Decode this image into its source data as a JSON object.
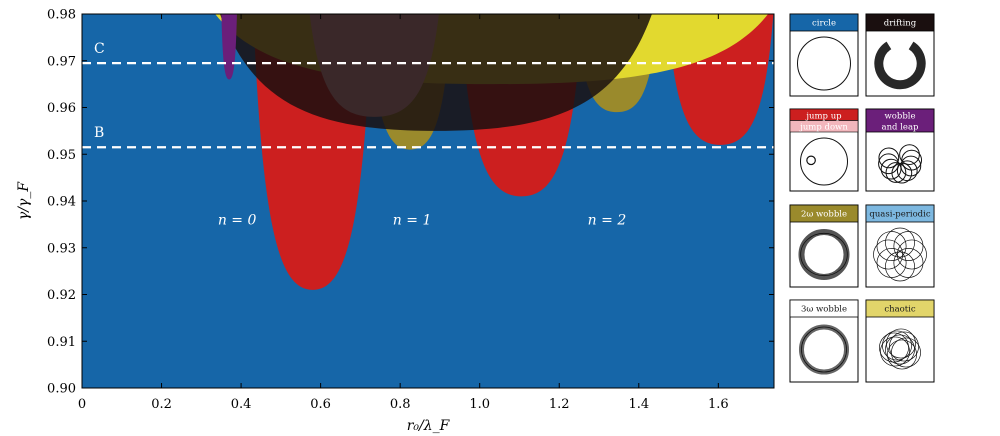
{
  "chart_data": {
    "type": "heatmap",
    "xlabel": "r₀/λ_F",
    "ylabel": "γ/γ_F",
    "xlim": [
      0,
      1.74
    ],
    "ylim": [
      0.9,
      0.98
    ],
    "x_ticks": [
      0,
      0.2,
      0.4,
      0.6,
      0.8,
      1.0,
      1.2,
      1.4,
      1.6
    ],
    "x_tick_labels": [
      "0",
      "0.2",
      "0.4",
      "0.6",
      "0.8",
      "1.0",
      "1.2",
      "1.4",
      "1.6"
    ],
    "y_ticks": [
      0.9,
      0.91,
      0.92,
      0.93,
      0.94,
      0.95,
      0.96,
      0.97,
      0.98
    ],
    "y_tick_labels": [
      "0.90",
      "0.91",
      "0.92",
      "0.93",
      "0.94",
      "0.95",
      "0.96",
      "0.97",
      "0.98"
    ],
    "background_color": "#1666a8",
    "reference_lines": [
      {
        "label": "C",
        "y": 0.9695
      },
      {
        "label": "B",
        "y": 0.9515
      }
    ],
    "annotations": [
      {
        "text": "n = 0",
        "x": 0.39,
        "y": 0.935
      },
      {
        "text": "n = 1",
        "x": 0.83,
        "y": 0.935
      },
      {
        "text": "n = 2",
        "x": 1.32,
        "y": 0.935
      }
    ],
    "regions": [
      {
        "state": "jump up",
        "color": "#cc1f1f",
        "x_range": [
          0.43,
          0.73
        ],
        "min_y": 0.921
      },
      {
        "state": "jump up",
        "color": "#cc1f1f",
        "x_range": [
          0.95,
          1.26
        ],
        "min_y": 0.941
      },
      {
        "state": "jump up",
        "color": "#cc1f1f",
        "x_range": [
          1.47,
          1.74
        ],
        "min_y": 0.952
      },
      {
        "state": "2ω wobble",
        "color": "#9a8a2c",
        "x_range": [
          0.72,
          0.93
        ],
        "min_y": 0.951
      },
      {
        "state": "2ω wobble",
        "color": "#9a8a2c",
        "x_range": [
          1.24,
          1.45
        ],
        "min_y": 0.959
      },
      {
        "state": "chaotic",
        "color": "#e2d92f",
        "x_range": [
          0.32,
          1.74
        ],
        "min_y": 0.965
      },
      {
        "state": "jump down",
        "color": "#f2b6bc",
        "x_range": [
          0.57,
          0.9
        ],
        "min_y": 0.958
      },
      {
        "state": "drifting",
        "color": "#1a0f0f",
        "x_range": [
          0.34,
          1.44
        ],
        "min_y": 0.955
      },
      {
        "state": "wobble and leap",
        "color": "#6b1f7a",
        "x_range": [
          0.35,
          0.39
        ],
        "min_y": 0.966
      }
    ],
    "legend": [
      {
        "label": "circle",
        "color": "#1666a8",
        "text_color": "#ffffff",
        "thumb": "circle"
      },
      {
        "label": "drifting",
        "color": "#1a0f0f",
        "text_color": "#ffffff",
        "thumb": "drifting"
      },
      {
        "label": "jump up",
        "label2": "jump down",
        "color": "#cc1f1f",
        "color2": "#f2b6bc",
        "text_color": "#ffffff",
        "thumb": "jump"
      },
      {
        "label": "wobble",
        "label2": "and leap",
        "color": "#6b1f7a",
        "text_color": "#ffffff",
        "thumb": "leap"
      },
      {
        "label": "2ω wobble",
        "color": "#9a8a2c",
        "text_color": "#ffffff",
        "thumb": "wobble2"
      },
      {
        "label": "quasi-periodic",
        "color": "#7db8e0",
        "text_color": "#1a1a1a",
        "thumb": "quasi"
      },
      {
        "label": "3ω wobble",
        "color": "#ffffff",
        "text_color": "#1a1a1a",
        "thumb": "wobble3"
      },
      {
        "label": "chaotic",
        "color": "#e2d56a",
        "text_color": "#1a1a1a",
        "thumb": "chaotic"
      }
    ]
  }
}
